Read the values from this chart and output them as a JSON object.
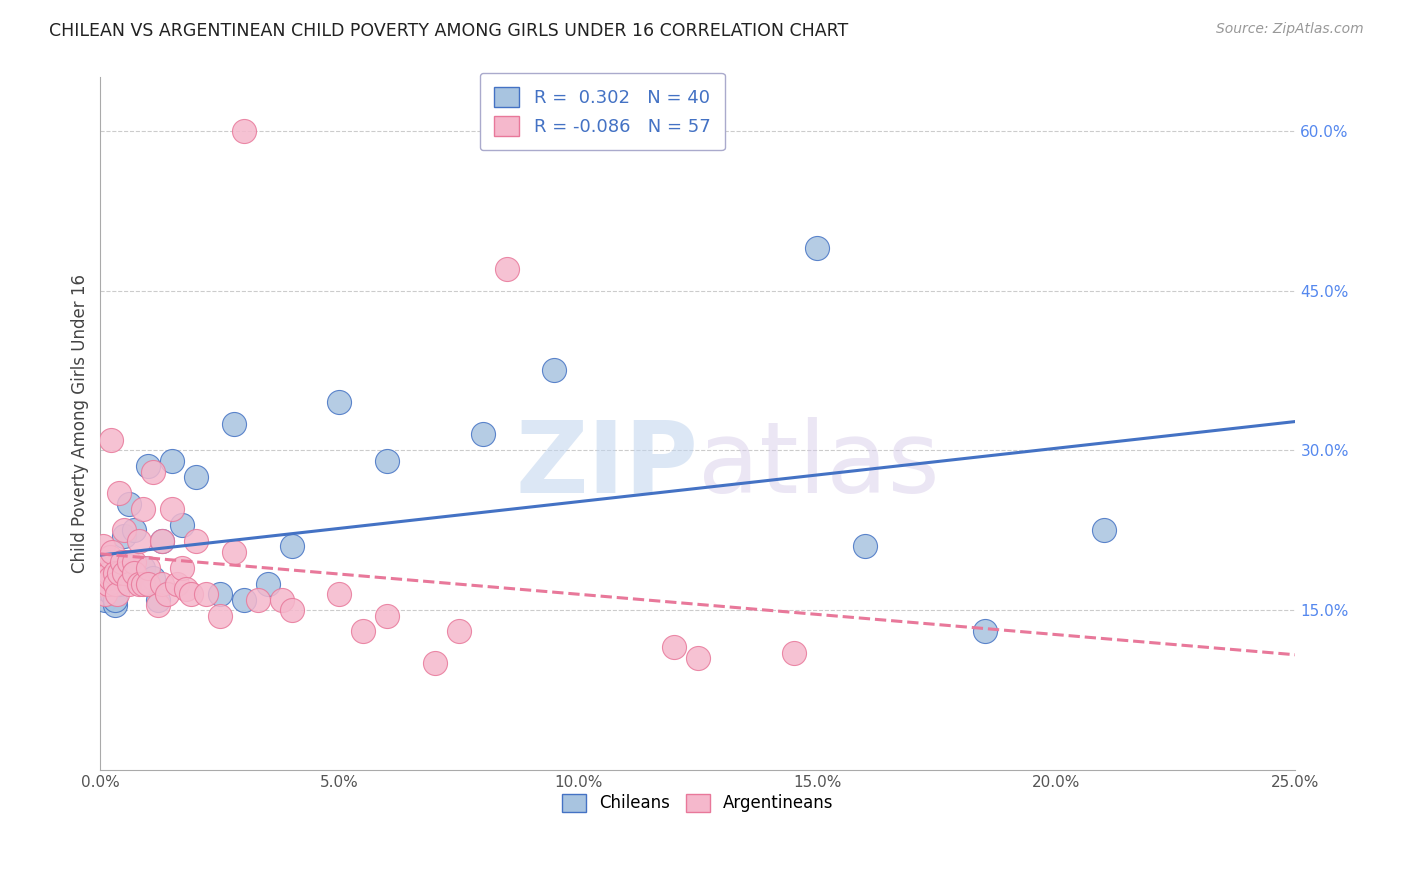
{
  "title": "CHILEAN VS ARGENTINEAN CHILD POVERTY AMONG GIRLS UNDER 16 CORRELATION CHART",
  "source": "Source: ZipAtlas.com",
  "ylabel": "Child Poverty Among Girls Under 16",
  "xlim": [
    0.0,
    0.25
  ],
  "ylim": [
    0.0,
    0.65
  ],
  "xticks": [
    0.0,
    0.05,
    0.1,
    0.15,
    0.2,
    0.25
  ],
  "yticks_right": [
    0.15,
    0.3,
    0.45,
    0.6
  ],
  "background_color": "#ffffff",
  "grid_color": "#cccccc",
  "chileans_color": "#a8c4e0",
  "argentineans_color": "#f5b8cc",
  "chileans_line_color": "#4472c4",
  "argentineans_line_color": "#e8789a",
  "chilean_R": "0.302",
  "chilean_N": "40",
  "argentinean_R": "-0.086",
  "argentinean_N": "57",
  "chileans_x": [
    0.0005,
    0.0008,
    0.001,
    0.0012,
    0.0015,
    0.002,
    0.0022,
    0.0025,
    0.003,
    0.003,
    0.0035,
    0.004,
    0.004,
    0.0045,
    0.005,
    0.005,
    0.006,
    0.007,
    0.008,
    0.009,
    0.01,
    0.011,
    0.012,
    0.013,
    0.015,
    0.017,
    0.02,
    0.025,
    0.028,
    0.03,
    0.035,
    0.04,
    0.05,
    0.06,
    0.08,
    0.095,
    0.15,
    0.16,
    0.185,
    0.21
  ],
  "chileans_y": [
    0.185,
    0.175,
    0.16,
    0.17,
    0.175,
    0.18,
    0.175,
    0.165,
    0.155,
    0.16,
    0.18,
    0.175,
    0.185,
    0.18,
    0.195,
    0.22,
    0.25,
    0.225,
    0.18,
    0.19,
    0.285,
    0.18,
    0.16,
    0.215,
    0.29,
    0.23,
    0.275,
    0.165,
    0.325,
    0.16,
    0.175,
    0.21,
    0.345,
    0.29,
    0.315,
    0.375,
    0.49,
    0.21,
    0.13,
    0.225
  ],
  "argentineans_x": [
    0.0003,
    0.0005,
    0.0007,
    0.001,
    0.001,
    0.0012,
    0.0015,
    0.0018,
    0.002,
    0.002,
    0.0022,
    0.0025,
    0.003,
    0.003,
    0.0035,
    0.004,
    0.004,
    0.0045,
    0.005,
    0.005,
    0.006,
    0.006,
    0.007,
    0.007,
    0.008,
    0.008,
    0.009,
    0.009,
    0.01,
    0.01,
    0.011,
    0.012,
    0.013,
    0.013,
    0.014,
    0.015,
    0.016,
    0.017,
    0.018,
    0.019,
    0.02,
    0.022,
    0.025,
    0.028,
    0.03,
    0.033,
    0.038,
    0.04,
    0.05,
    0.055,
    0.06,
    0.07,
    0.075,
    0.085,
    0.12,
    0.125,
    0.145
  ],
  "argentineans_y": [
    0.18,
    0.21,
    0.175,
    0.185,
    0.165,
    0.195,
    0.175,
    0.185,
    0.2,
    0.18,
    0.31,
    0.205,
    0.185,
    0.175,
    0.165,
    0.26,
    0.185,
    0.195,
    0.225,
    0.185,
    0.195,
    0.175,
    0.195,
    0.185,
    0.215,
    0.175,
    0.175,
    0.245,
    0.19,
    0.175,
    0.28,
    0.155,
    0.215,
    0.175,
    0.165,
    0.245,
    0.175,
    0.19,
    0.17,
    0.165,
    0.215,
    0.165,
    0.145,
    0.205,
    0.6,
    0.16,
    0.16,
    0.15,
    0.165,
    0.13,
    0.145,
    0.1,
    0.13,
    0.47,
    0.115,
    0.105,
    0.11
  ],
  "watermark_zip": "ZIP",
  "watermark_atlas": "atlas",
  "legend_label_chileans": "Chileans",
  "legend_label_argentineans": "Argentineans"
}
